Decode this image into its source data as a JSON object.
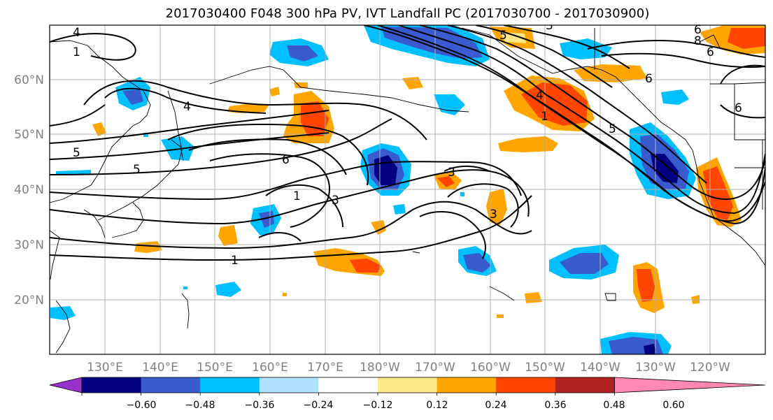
{
  "title": "2017030400 F048 300 hPa PV, IVT Landfall PC (2017030700 - 2017030900)",
  "latitude_ticks": [
    "60°N",
    "50°N",
    "40°N",
    "30°N",
    "20°N"
  ],
  "longitude_ticks": [
    "130°E",
    "140°E",
    "150°E",
    "160°E",
    "170°E",
    "180°W",
    "170°W",
    "160°W",
    "150°W",
    "140°W",
    "130°W",
    "120°W"
  ],
  "colorbar": {
    "tick_labels": [
      "−0.60",
      "−0.48",
      "−0.36",
      "−0.24",
      "−0.12",
      "0.12",
      "0.24",
      "0.36",
      "0.48",
      "0.60"
    ],
    "colors": [
      "#9932CC",
      "#000080",
      "#3A5BD0",
      "#00BFFF",
      "#B0E2FF",
      "#FFFFFF",
      "#FFE887",
      "#FFA500",
      "#FF4500",
      "#B22222",
      "#FF88B4"
    ]
  },
  "contour_labels": [
    "4",
    "1",
    "5",
    "4",
    "6",
    "5",
    "6",
    "3",
    "1",
    "3",
    "3",
    "1",
    "6",
    "5",
    "4",
    "1",
    "5",
    "3",
    "8",
    "6",
    "6",
    "6"
  ]
}
